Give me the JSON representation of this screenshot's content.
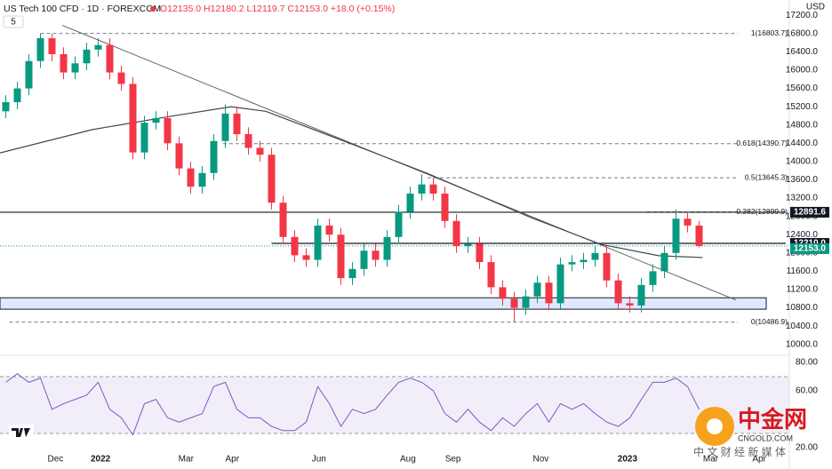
{
  "header": {
    "symbol": "US Tech 100 CFD · 1D · FOREXCOM",
    "ohlc": "O12135.0 H12180.2 L12119.7 C12153.0 +18.0 (+0.15%)",
    "indicators": "5",
    "currency": "USD"
  },
  "watermark": {
    "name": "中金网",
    "site": "CNGOLD.COM",
    "slogan": "中 文 财 经 新 媒 体"
  },
  "chart_data": [
    {
      "type": "candlestick",
      "up_color": "#089981",
      "down_color": "#f23645",
      "xlim": [
        0,
        68
      ],
      "ylim": [
        9800,
        17380
      ],
      "xticks": [
        {
          "value": 4.8,
          "label": "Dec"
        },
        {
          "value": 8.7,
          "label": "2022"
        },
        {
          "value": 16.1,
          "label": "Mar"
        },
        {
          "value": 20.1,
          "label": "Apr"
        },
        {
          "value": 27.6,
          "label": "Jun"
        },
        {
          "value": 35.3,
          "label": "Aug"
        },
        {
          "value": 39.2,
          "label": "Sep"
        },
        {
          "value": 46.8,
          "label": "Nov"
        },
        {
          "value": 54.3,
          "label": "2023"
        },
        {
          "value": 61.5,
          "label": "Mar"
        },
        {
          "value": 65.7,
          "label": "Apr"
        }
      ],
      "yticks": [
        {
          "value": 10000,
          "label": "10000.0"
        },
        {
          "value": 10400,
          "label": "10400.0"
        },
        {
          "value": 10800,
          "label": "10800.0"
        },
        {
          "value": 11200,
          "label": "11200.0"
        },
        {
          "value": 11600,
          "label": "11600.0"
        },
        {
          "value": 12000,
          "label": "12000.0"
        },
        {
          "value": 12400,
          "label": "12400.0"
        },
        {
          "value": 12800,
          "label": "12800.0"
        },
        {
          "value": 13200,
          "label": "13200.0"
        },
        {
          "value": 13600,
          "label": "13600.0"
        },
        {
          "value": 14000,
          "label": "14000.0"
        },
        {
          "value": 14400,
          "label": "14400.0"
        },
        {
          "value": 14800,
          "label": "14800.0"
        },
        {
          "value": 15200,
          "label": "15200.0"
        },
        {
          "value": 15600,
          "label": "15600.0"
        },
        {
          "value": 16000,
          "label": "16000.0"
        },
        {
          "value": 16400,
          "label": "16400.0"
        },
        {
          "value": 16800,
          "label": "16800.0"
        },
        {
          "value": 17200,
          "label": "17200.0"
        }
      ],
      "open": [
        15100,
        15300,
        15600,
        16200,
        16700,
        16350,
        15950,
        16150,
        16450,
        16550,
        15950,
        15700,
        14200,
        14850,
        14950,
        14400,
        13850,
        13450,
        13750,
        14450,
        15050,
        14600,
        14300,
        14150,
        13100,
        12350,
        11950,
        11850,
        12600,
        12400,
        11450,
        11650,
        12050,
        11850,
        12350,
        12900,
        13300,
        13500,
        13300,
        12700,
        12150,
        12200,
        11800,
        11250,
        11000,
        10800,
        11050,
        11350,
        10900,
        11750,
        11800,
        11850,
        12000,
        11400,
        10900,
        10850,
        11300,
        11600,
        12000,
        12750,
        12600
      ],
      "high": [
        15450,
        15750,
        16350,
        16804,
        16800,
        16500,
        16300,
        16600,
        16700,
        16700,
        16100,
        15850,
        15000,
        15100,
        15100,
        14550,
        14000,
        13900,
        14600,
        15250,
        15200,
        14750,
        14450,
        14300,
        13250,
        12500,
        12100,
        12750,
        12750,
        12550,
        11800,
        12200,
        12200,
        12500,
        13050,
        13450,
        13720,
        13650,
        13450,
        12850,
        12350,
        12350,
        11950,
        11400,
        11150,
        11200,
        11500,
        11500,
        11900,
        11950,
        12000,
        12150,
        12150,
        11550,
        11050,
        11450,
        11750,
        12150,
        12950,
        12900,
        12700
      ],
      "low": [
        14950,
        15150,
        15450,
        16050,
        16200,
        15800,
        15800,
        16000,
        16300,
        15800,
        15550,
        14050,
        14050,
        14700,
        14250,
        13700,
        13300,
        13300,
        13600,
        14300,
        14450,
        14150,
        14000,
        12950,
        12200,
        11800,
        11700,
        11700,
        12250,
        11300,
        11300,
        11500,
        11700,
        11700,
        12200,
        12750,
        13150,
        13150,
        12550,
        12000,
        12000,
        11650,
        11100,
        10850,
        10490,
        10650,
        10900,
        10750,
        10750,
        11600,
        11650,
        11700,
        11250,
        10750,
        10700,
        10700,
        11150,
        11450,
        11850,
        12450,
        12120
      ],
      "close": [
        15300,
        15600,
        16200,
        16700,
        16350,
        15950,
        16150,
        16450,
        16550,
        15950,
        15700,
        14200,
        14850,
        14950,
        14400,
        13850,
        13450,
        13750,
        14450,
        15050,
        14600,
        14300,
        14150,
        13100,
        12350,
        11950,
        11850,
        12600,
        12400,
        11450,
        11650,
        12050,
        11850,
        12350,
        12900,
        13300,
        13500,
        13300,
        12700,
        12150,
        12200,
        11800,
        11250,
        11000,
        10800,
        11050,
        11350,
        10900,
        11750,
        11800,
        11850,
        12000,
        11400,
        10900,
        10850,
        11300,
        11600,
        12000,
        12750,
        12600,
        12153
      ],
      "moving_average": {
        "color": "#434651",
        "x": [
          0,
          8,
          15,
          20,
          23,
          31,
          37,
          46,
          52,
          57,
          60.8
        ],
        "values": [
          14190,
          14700,
          15000,
          15200,
          15100,
          14330,
          13740,
          12770,
          12190,
          11940,
          11900
        ]
      },
      "trend_line": {
        "color": "#5d606b",
        "x": [
          5.4,
          63.7
        ],
        "values": [
          16980,
          10970
        ]
      },
      "zone": {
        "color": "#2962ff",
        "values": [
          11020,
          10770
        ]
      },
      "horizontal_lines": [
        {
          "value": 12891.6,
          "x": [
            0,
            68
          ],
          "color": "#131722"
        },
        {
          "value": 12210,
          "x": [
            23.5,
            68
          ],
          "color": "#131722"
        }
      ],
      "last_price_line": {
        "value": 12153,
        "color": "#089981"
      },
      "fib_levels": [
        {
          "value": 16803.7,
          "label": "1(16803.7)",
          "x": [
            3.5,
            68
          ]
        },
        {
          "value": 14390.7,
          "label": "0.618(14390.7)",
          "x": [
            19.3,
            68
          ]
        },
        {
          "value": 13645.3,
          "label": "0.5(13645.3)",
          "x": [
            37,
            68
          ]
        },
        {
          "value": 12899.9,
          "label": "0.382(12899.9)",
          "x": [
            56,
            68
          ]
        },
        {
          "value": 10486.9,
          "label": "0(10486.9)",
          "x": [
            0.8,
            68
          ]
        }
      ],
      "price_labels": [
        {
          "value": 12891.6,
          "label": "12891.6",
          "color": "#131722"
        },
        {
          "value": 12210,
          "label": "12210.0",
          "color": "#131722"
        },
        {
          "value": 12153,
          "label": "12153.0",
          "color": "#089981"
        }
      ]
    },
    {
      "type": "line",
      "color": "#7e57c2",
      "xlim": [
        0,
        68
      ],
      "ylim": [
        10,
        85
      ],
      "yticks": [
        {
          "value": 80,
          "label": "80.00"
        },
        {
          "value": 60,
          "label": "60.00"
        },
        {
          "value": 20,
          "label": "20.00"
        }
      ],
      "bands": [
        70,
        30
      ],
      "values": [
        66,
        72,
        66,
        69,
        47,
        51,
        54,
        57,
        66,
        47,
        41,
        29,
        51,
        54,
        41,
        38,
        41,
        44,
        63,
        66,
        47,
        41,
        41,
        35,
        32,
        32,
        38,
        63,
        51,
        35,
        47,
        44,
        47,
        57,
        66,
        69,
        66,
        60,
        44,
        38,
        47,
        38,
        32,
        41,
        35,
        44,
        51,
        38,
        51,
        47,
        51,
        44,
        38,
        35,
        41,
        54,
        66,
        66,
        69,
        63,
        47
      ]
    }
  ]
}
